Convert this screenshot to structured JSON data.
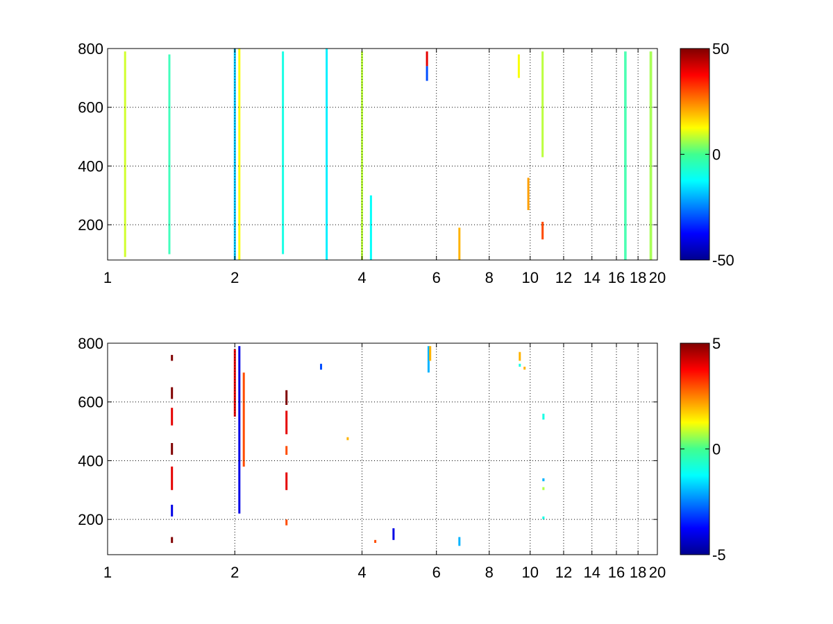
{
  "chart_data": [
    {
      "type": "heatmap",
      "title": "",
      "xlabel": "",
      "ylabel": "",
      "xlim": [
        1,
        20
      ],
      "ylim": [
        80,
        800
      ],
      "x_ticks": [
        "1",
        "2",
        "4",
        "6",
        "8",
        "10",
        "12",
        "14",
        "16",
        "18",
        "20"
      ],
      "x_tick_values": [
        1,
        2,
        4,
        6,
        8,
        10,
        12,
        14,
        16,
        18,
        20
      ],
      "y_ticks": [
        "200",
        "400",
        "600",
        "800"
      ],
      "y_tick_values": [
        200,
        400,
        600,
        800
      ],
      "x_scale": "log",
      "grid": true,
      "colormap": "jet",
      "colorbar": {
        "limits": [
          -50,
          50
        ],
        "ticks": [
          "50",
          "0",
          "-50"
        ],
        "tick_values": [
          50,
          0,
          -50
        ]
      },
      "background": "#ffffff",
      "note_values": "dense sparse field, mostly values near 0 (green/cyan/yellow), a few larger values near x=5.7 and x=10.7",
      "cells": [
        {
          "x": 1.1,
          "y0": 90,
          "y1": 790,
          "v": 8
        },
        {
          "x": 1.4,
          "y0": 100,
          "y1": 780,
          "v": -6
        },
        {
          "x": 2.0,
          "y0": 80,
          "y1": 800,
          "v": -18
        },
        {
          "x": 2.05,
          "y0": 80,
          "y1": 800,
          "v": 12
        },
        {
          "x": 2.6,
          "y0": 100,
          "y1": 790,
          "v": -10
        },
        {
          "x": 3.3,
          "y0": 80,
          "y1": 800,
          "v": -14
        },
        {
          "x": 4.0,
          "y0": 80,
          "y1": 790,
          "v": 6
        },
        {
          "x": 4.2,
          "y0": 80,
          "y1": 300,
          "v": -12
        },
        {
          "x": 5.7,
          "y0": 740,
          "y1": 790,
          "v": 40
        },
        {
          "x": 5.7,
          "y0": 690,
          "y1": 740,
          "v": -30
        },
        {
          "x": 6.8,
          "y0": 80,
          "y1": 190,
          "v": 20
        },
        {
          "x": 9.4,
          "y0": 700,
          "y1": 780,
          "v": 12
        },
        {
          "x": 9.9,
          "y0": 250,
          "y1": 360,
          "v": 22
        },
        {
          "x": 10.7,
          "y0": 150,
          "y1": 210,
          "v": 30
        },
        {
          "x": 10.7,
          "y0": 430,
          "y1": 790,
          "v": 6
        },
        {
          "x": 16.8,
          "y0": 80,
          "y1": 790,
          "v": -5
        },
        {
          "x": 19.3,
          "y0": 80,
          "y1": 790,
          "v": 4
        }
      ]
    },
    {
      "type": "heatmap",
      "title": "",
      "xlabel": "",
      "ylabel": "",
      "xlim": [
        1,
        20
      ],
      "ylim": [
        80,
        800
      ],
      "x_ticks": [
        "1",
        "2",
        "4",
        "6",
        "8",
        "10",
        "12",
        "14",
        "16",
        "18",
        "20"
      ],
      "x_tick_values": [
        1,
        2,
        4,
        6,
        8,
        10,
        12,
        14,
        16,
        18,
        20
      ],
      "y_ticks": [
        "200",
        "400",
        "600",
        "800"
      ],
      "y_tick_values": [
        200,
        400,
        600,
        800
      ],
      "x_scale": "log",
      "grid": true,
      "colormap": "jet",
      "colorbar": {
        "limits": [
          -5,
          5
        ],
        "ticks": [
          "5",
          "0",
          "-5"
        ],
        "tick_values": [
          5,
          0,
          -5
        ]
      },
      "background": "#ffffff",
      "cells": [
        {
          "x": 1.42,
          "y0": 740,
          "y1": 760,
          "v": 5
        },
        {
          "x": 1.42,
          "y0": 610,
          "y1": 650,
          "v": 5
        },
        {
          "x": 1.42,
          "y0": 520,
          "y1": 580,
          "v": 4
        },
        {
          "x": 1.42,
          "y0": 420,
          "y1": 460,
          "v": 5
        },
        {
          "x": 1.42,
          "y0": 300,
          "y1": 380,
          "v": 4
        },
        {
          "x": 1.42,
          "y0": 210,
          "y1": 250,
          "v": -4
        },
        {
          "x": 1.42,
          "y0": 120,
          "y1": 140,
          "v": 5
        },
        {
          "x": 2.0,
          "y0": 550,
          "y1": 780,
          "v": 4
        },
        {
          "x": 2.05,
          "y0": 220,
          "y1": 790,
          "v": -4
        },
        {
          "x": 2.1,
          "y0": 380,
          "y1": 700,
          "v": 3
        },
        {
          "x": 2.65,
          "y0": 590,
          "y1": 640,
          "v": 5
        },
        {
          "x": 2.65,
          "y0": 490,
          "y1": 570,
          "v": 4
        },
        {
          "x": 2.65,
          "y0": 420,
          "y1": 450,
          "v": 3
        },
        {
          "x": 2.65,
          "y0": 300,
          "y1": 360,
          "v": 4
        },
        {
          "x": 2.65,
          "y0": 180,
          "y1": 200,
          "v": 3
        },
        {
          "x": 3.2,
          "y0": 710,
          "y1": 730,
          "v": -3
        },
        {
          "x": 3.7,
          "y0": 470,
          "y1": 480,
          "v": 2
        },
        {
          "x": 4.3,
          "y0": 120,
          "y1": 130,
          "v": 3
        },
        {
          "x": 4.75,
          "y0": 130,
          "y1": 170,
          "v": -4
        },
        {
          "x": 5.75,
          "y0": 700,
          "y1": 790,
          "v": -2
        },
        {
          "x": 5.8,
          "y0": 740,
          "y1": 790,
          "v": 2
        },
        {
          "x": 6.8,
          "y0": 110,
          "y1": 140,
          "v": -2
        },
        {
          "x": 9.45,
          "y0": 740,
          "y1": 770,
          "v": 2
        },
        {
          "x": 9.45,
          "y0": 720,
          "y1": 730,
          "v": -1
        },
        {
          "x": 9.7,
          "y0": 710,
          "y1": 720,
          "v": 2
        },
        {
          "x": 10.75,
          "y0": 540,
          "y1": 560,
          "v": -1
        },
        {
          "x": 10.75,
          "y0": 330,
          "y1": 340,
          "v": -2
        },
        {
          "x": 10.75,
          "y0": 300,
          "y1": 310,
          "v": 0.5
        },
        {
          "x": 10.75,
          "y0": 200,
          "y1": 210,
          "v": -1
        }
      ]
    }
  ]
}
